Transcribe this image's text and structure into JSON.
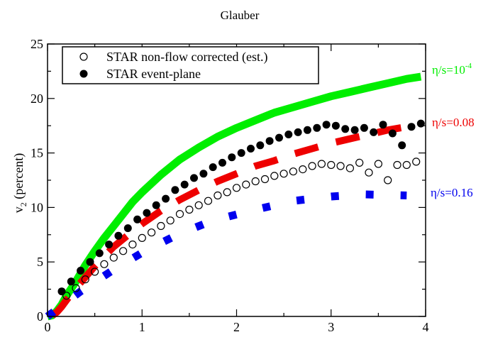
{
  "chart_data": {
    "type": "scatter",
    "title": "Glauber",
    "xlabel": "",
    "ylabel": "v₂ (percent)",
    "ylabel_main": "v",
    "ylabel_sub": "2",
    "ylabel_rest": " (percent)",
    "xlim": [
      0,
      4
    ],
    "ylim": [
      0,
      25
    ],
    "x_ticks": [
      0,
      1,
      2,
      3,
      4
    ],
    "y_ticks": [
      0,
      5,
      10,
      15,
      20,
      25
    ],
    "x_tick_labels": [
      "0",
      "1",
      "2",
      "3",
      "4"
    ],
    "y_tick_labels": [
      "0",
      "5",
      "10",
      "15",
      "20",
      "25"
    ],
    "grid": false,
    "legend_position": "top-left",
    "legend": [
      {
        "label": "STAR non-flow corrected (est.)",
        "marker": "open-circle"
      },
      {
        "label": "STAR event-plane",
        "marker": "filled-circle"
      }
    ],
    "curve_labels": [
      {
        "text": "η/s=10",
        "sup": "-4",
        "color": "#00ee00",
        "series": "green"
      },
      {
        "text": "η/s=0.08",
        "sup": "",
        "color": "#ee0000",
        "series": "red"
      },
      {
        "text": "η/s=0.16",
        "sup": "",
        "color": "#0000ee",
        "series": "blue"
      }
    ],
    "data_series": [
      {
        "marker": "open-circle",
        "x": [
          0.2,
          0.3,
          0.4,
          0.5,
          0.6,
          0.7,
          0.8,
          0.9,
          1.0,
          1.1,
          1.2,
          1.3,
          1.4,
          1.5,
          1.6,
          1.7,
          1.8,
          1.9,
          2.0,
          2.1,
          2.2,
          2.3,
          2.4,
          2.5,
          2.6,
          2.7,
          2.8,
          2.9,
          3.0,
          3.1,
          3.2,
          3.3,
          3.4,
          3.5,
          3.6,
          3.7,
          3.8,
          3.9
        ],
        "y": [
          1.9,
          2.6,
          3.4,
          4.1,
          4.8,
          5.4,
          6.0,
          6.6,
          7.2,
          7.7,
          8.3,
          8.8,
          9.4,
          9.8,
          10.2,
          10.6,
          11.1,
          11.4,
          11.8,
          12.1,
          12.4,
          12.6,
          12.9,
          13.1,
          13.3,
          13.5,
          13.8,
          14.0,
          13.9,
          13.8,
          13.6,
          14.1,
          13.2,
          14.0,
          12.5,
          13.9,
          13.9,
          14.2
        ]
      },
      {
        "marker": "filled-circle",
        "x": [
          0.15,
          0.25,
          0.35,
          0.45,
          0.55,
          0.65,
          0.75,
          0.85,
          0.95,
          1.05,
          1.15,
          1.25,
          1.35,
          1.45,
          1.55,
          1.65,
          1.75,
          1.85,
          1.95,
          2.05,
          2.15,
          2.25,
          2.35,
          2.45,
          2.55,
          2.65,
          2.75,
          2.85,
          2.95,
          3.05,
          3.15,
          3.25,
          3.35,
          3.45,
          3.55,
          3.65,
          3.75,
          3.85,
          3.95
        ],
        "y": [
          2.3,
          3.2,
          4.2,
          5.0,
          5.8,
          6.6,
          7.4,
          8.1,
          8.9,
          9.5,
          10.2,
          10.8,
          11.6,
          12.1,
          12.7,
          13.1,
          13.7,
          14.1,
          14.6,
          15.0,
          15.4,
          15.7,
          16.1,
          16.4,
          16.7,
          16.9,
          17.1,
          17.3,
          17.6,
          17.5,
          17.2,
          17.1,
          17.3,
          16.9,
          17.6,
          16.8,
          15.7,
          17.4,
          17.7
        ]
      }
    ],
    "curves": [
      {
        "name": "green",
        "color": "#00ee00",
        "style": "solid",
        "x": [
          0.0,
          0.05,
          0.1,
          0.15,
          0.2,
          0.3,
          0.4,
          0.5,
          0.6,
          0.7,
          0.8,
          0.9,
          1.0,
          1.2,
          1.4,
          1.6,
          1.8,
          2.0,
          2.2,
          2.4,
          2.6,
          2.8,
          3.0,
          3.2,
          3.4,
          3.6,
          3.8,
          3.95
        ],
        "y": [
          0.0,
          0.1,
          0.5,
          1.1,
          1.9,
          3.2,
          4.7,
          6.0,
          7.2,
          8.3,
          9.4,
          10.5,
          11.4,
          13.0,
          14.4,
          15.5,
          16.5,
          17.3,
          18.0,
          18.7,
          19.2,
          19.7,
          20.2,
          20.6,
          21.0,
          21.4,
          21.8,
          22.0
        ]
      },
      {
        "name": "red",
        "color": "#ee0000",
        "style": "long-dash",
        "x": [
          0.05,
          0.1,
          0.15,
          0.2,
          0.3,
          0.4,
          0.5,
          0.6,
          0.7,
          0.8,
          0.9,
          1.0,
          1.2,
          1.4,
          1.6,
          1.8,
          2.0,
          2.2,
          2.4,
          2.6,
          2.8,
          3.0,
          3.2,
          3.4,
          3.6,
          3.8
        ],
        "y": [
          0.1,
          0.4,
          0.9,
          1.5,
          2.6,
          3.6,
          4.6,
          5.5,
          6.4,
          7.1,
          7.8,
          8.5,
          9.7,
          10.7,
          11.6,
          12.4,
          13.1,
          13.8,
          14.3,
          14.9,
          15.4,
          15.9,
          16.3,
          16.7,
          17.1,
          17.4
        ]
      },
      {
        "name": "blue",
        "color": "#0000ee",
        "style": "dot",
        "x": [
          0.0,
          0.35,
          0.7,
          1.05,
          1.4,
          1.75,
          2.2,
          2.6,
          3.0,
          3.35,
          3.8
        ],
        "y": [
          0.0,
          2.3,
          4.3,
          6.1,
          7.6,
          8.8,
          9.8,
          10.6,
          11.0,
          11.2,
          11.1
        ]
      }
    ]
  }
}
